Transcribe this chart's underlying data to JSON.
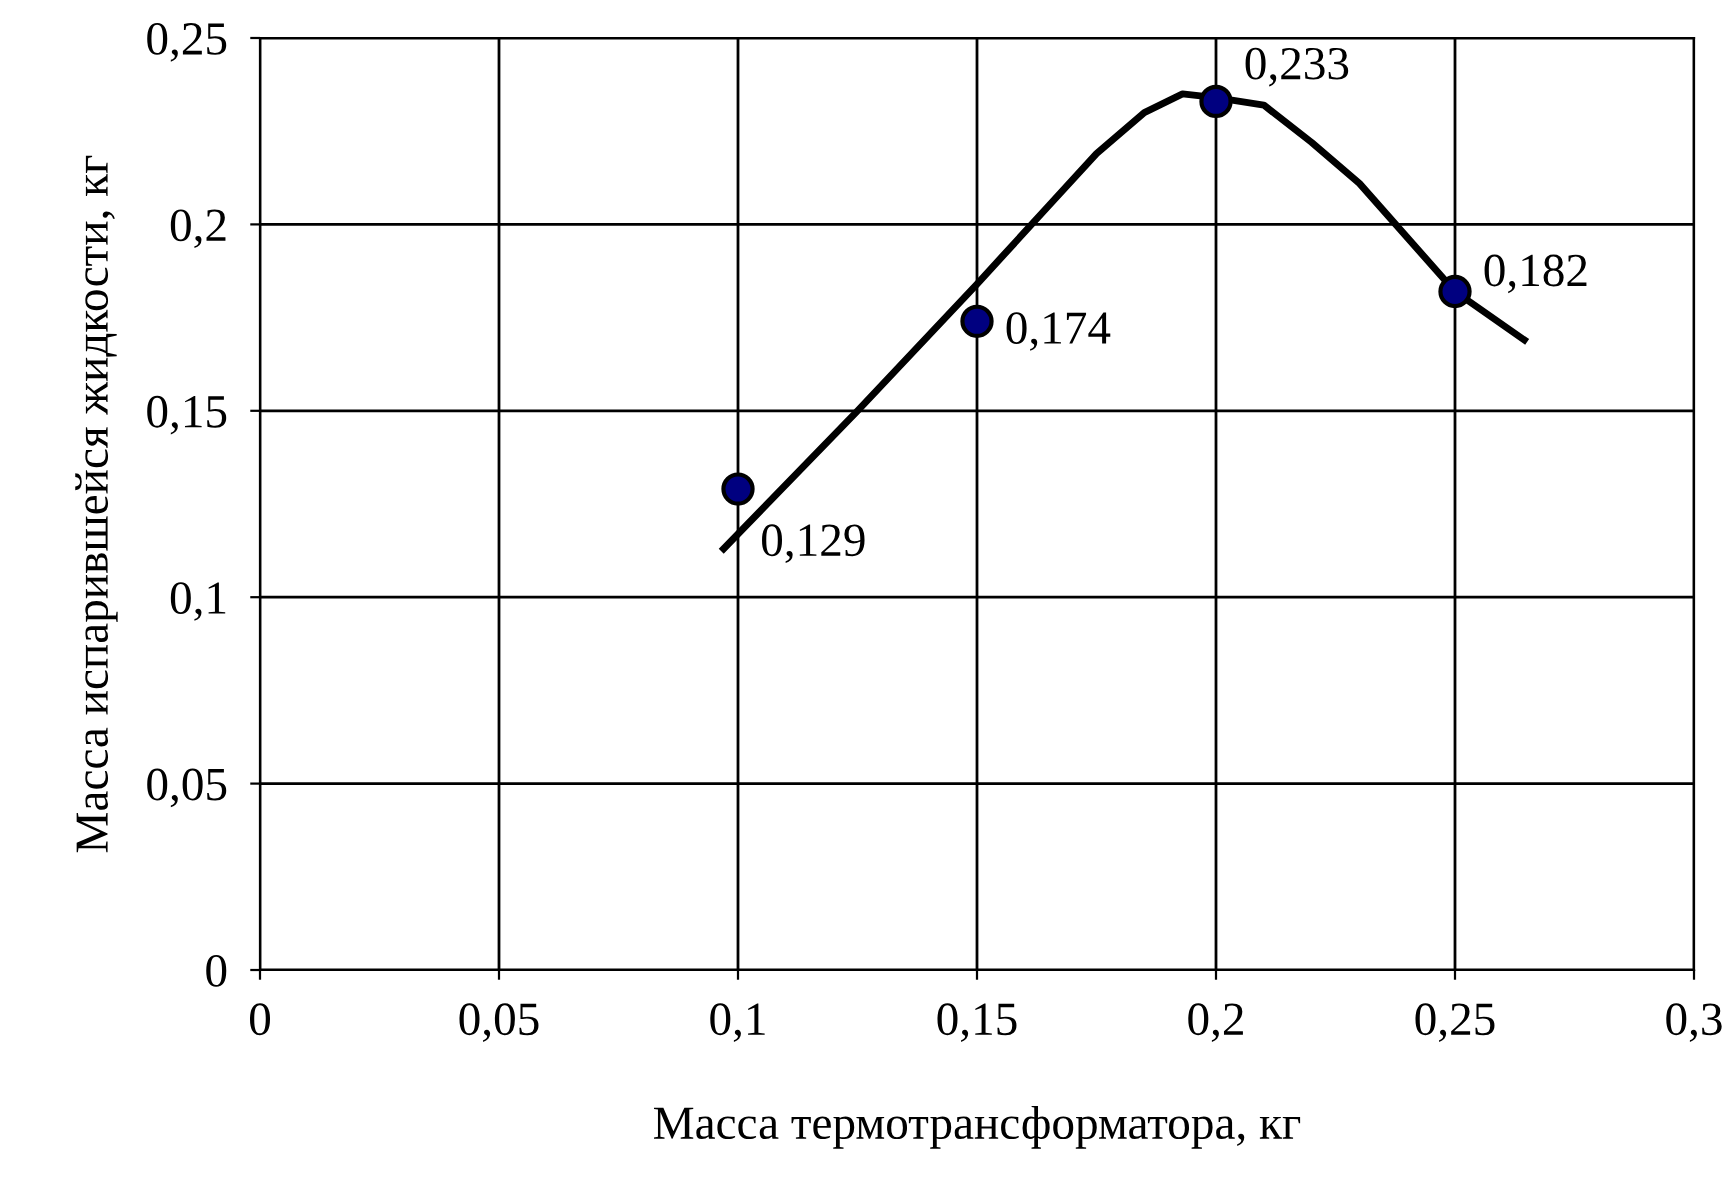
{
  "chart_data": {
    "type": "scatter",
    "xlabel": "Масса термотрансформатора, кг",
    "ylabel": "Масса испарившейся жидкости, кг",
    "xlim": [
      0,
      0.3
    ],
    "ylim": [
      0,
      0.25
    ],
    "xticks": [
      0,
      {
        "value": 0.05,
        "label": "0,05"
      },
      {
        "value": 0.1,
        "label": "0,1"
      },
      {
        "value": 0.15,
        "label": "0,15"
      },
      {
        "value": 0.2,
        "label": "0,2"
      },
      {
        "value": 0.25,
        "label": "0,25"
      },
      {
        "value": 0.3,
        "label": "0,3"
      }
    ],
    "yticks": [
      0,
      {
        "value": 0.05,
        "label": "0,05"
      },
      {
        "value": 0.1,
        "label": "0,1"
      },
      {
        "value": 0.15,
        "label": "0,15"
      },
      {
        "value": 0.2,
        "label": "0,2"
      },
      {
        "value": 0.25,
        "label": "0,25"
      }
    ],
    "grid": true,
    "series": [
      {
        "color": "#000080",
        "marker": "circle",
        "x": [
          0.1,
          0.15,
          0.2,
          0.25
        ],
        "values": [
          0.129,
          0.174,
          0.233,
          0.182
        ],
        "value_labels": [
          "0,129",
          "0,174",
          "0,233",
          "0,182"
        ]
      },
      {
        "type": "line",
        "color": "#000000",
        "line_style": "solid",
        "x": [
          0.097,
          0.125,
          0.15,
          0.165,
          0.175,
          0.185,
          0.193,
          0.2,
          0.21,
          0.22,
          0.23,
          0.25,
          0.2645
        ],
        "values": [
          0.113,
          0.15,
          0.184,
          0.205,
          0.219,
          0.23,
          0.235,
          0.234,
          0.232,
          0.222,
          0.211,
          0.182,
          0.169
        ]
      }
    ]
  }
}
